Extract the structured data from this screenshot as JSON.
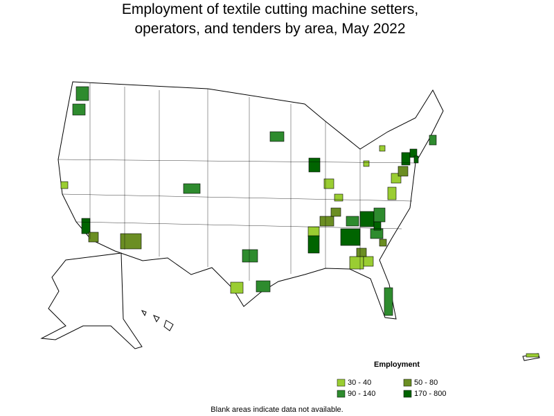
{
  "title": "Employment of textile cutting machine setters, operators, and tenders by area, May 2022",
  "legend": {
    "title": "Employment",
    "items": [
      {
        "label": "30 - 40",
        "color": "#9acd32"
      },
      {
        "label": "50 - 80",
        "color": "#6b8e23"
      },
      {
        "label": "90 - 140",
        "color": "#2e8b2e"
      },
      {
        "label": "170 - 800",
        "color": "#006400"
      }
    ]
  },
  "footnote": "Blank areas indicate data not available."
}
